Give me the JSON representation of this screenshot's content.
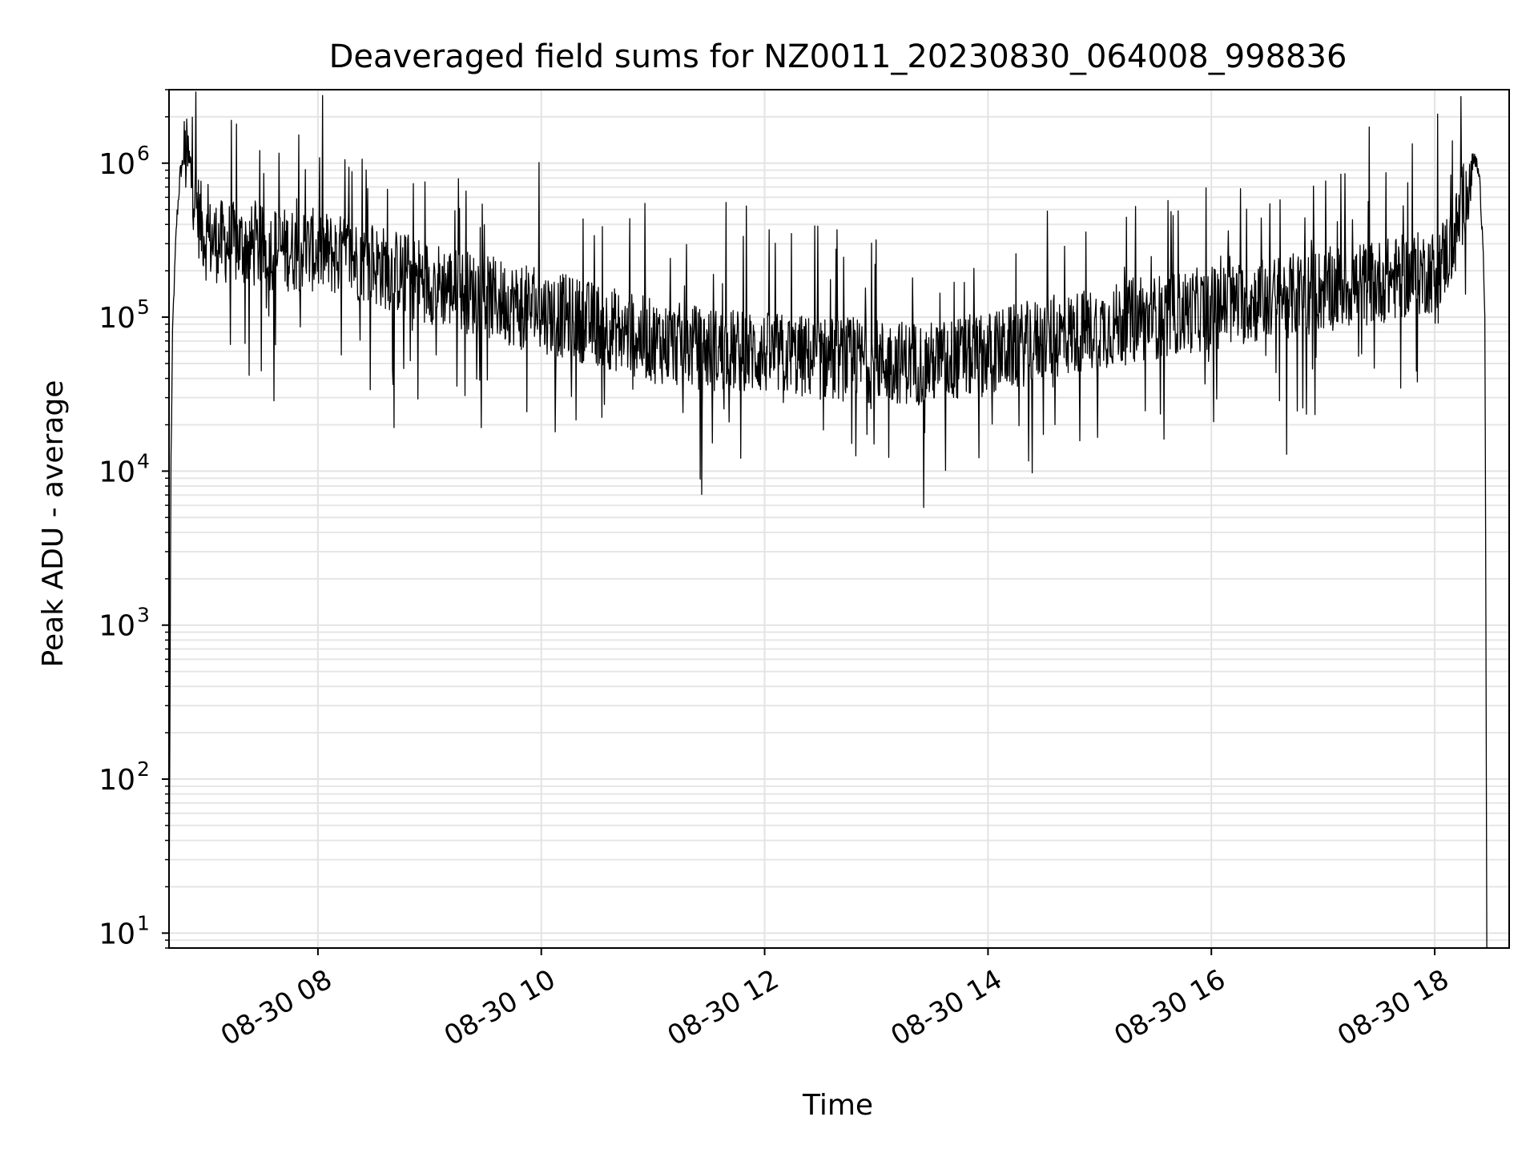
{
  "chart_data": {
    "type": "line",
    "title": "Deaveraged field sums for NZ0011_20230830_064008_998836",
    "xlabel": "Time",
    "ylabel": "Peak ADU - average",
    "xlim": [
      "2023-08-30 06:40",
      "2023-08-30 18:40"
    ],
    "ylim": [
      8,
      3000000
    ],
    "yscale": "log",
    "grid": true,
    "x_ticks": [
      {
        "t": "2023-08-30 08:00",
        "label": "08-30 08"
      },
      {
        "t": "2023-08-30 10:00",
        "label": "08-30 10"
      },
      {
        "t": "2023-08-30 12:00",
        "label": "08-30 12"
      },
      {
        "t": "2023-08-30 14:00",
        "label": "08-30 14"
      },
      {
        "t": "2023-08-30 16:00",
        "label": "08-30 16"
      },
      {
        "t": "2023-08-30 18:00",
        "label": "08-30 18"
      }
    ],
    "y_ticks": [
      {
        "value": 10,
        "base": "10",
        "exp": "1"
      },
      {
        "value": 100,
        "base": "10",
        "exp": "2"
      },
      {
        "value": 1000,
        "base": "10",
        "exp": "3"
      },
      {
        "value": 10000,
        "base": "10",
        "exp": "4"
      },
      {
        "value": 100000,
        "base": "10",
        "exp": "5"
      },
      {
        "value": 1000000,
        "base": "10",
        "exp": "6"
      }
    ],
    "series": [
      {
        "color": "#000000",
        "points": [
          [
            "2023-08-30 06:40",
            8
          ],
          [
            "2023-08-30 06:41",
            10000
          ],
          [
            "2023-08-30 06:42",
            90000
          ],
          [
            "2023-08-30 06:44",
            400000
          ],
          [
            "2023-08-30 06:46",
            850000
          ],
          [
            "2023-08-30 06:48",
            1100000
          ],
          [
            "2023-08-30 06:50",
            1050000
          ],
          [
            "2023-08-30 06:53",
            700000
          ],
          [
            "2023-08-30 06:56",
            450000
          ],
          [
            "2023-08-30 07:00",
            320000
          ],
          [
            "2023-08-30 07:30",
            280000
          ],
          [
            "2023-08-30 08:00",
            270000
          ],
          [
            "2023-08-30 08:30",
            220000
          ],
          [
            "2023-08-30 09:00",
            170000
          ],
          [
            "2023-08-30 09:30",
            135000
          ],
          [
            "2023-08-30 10:00",
            110000
          ],
          [
            "2023-08-30 10:30",
            90000
          ],
          [
            "2023-08-30 11:00",
            70000
          ],
          [
            "2023-08-30 11:30",
            62000
          ],
          [
            "2023-08-30 12:00",
            58000
          ],
          [
            "2023-08-30 12:30",
            54000
          ],
          [
            "2023-08-30 13:00",
            52000
          ],
          [
            "2023-08-30 13:30",
            50000
          ],
          [
            "2023-08-30 14:00",
            58000
          ],
          [
            "2023-08-30 14:30",
            72000
          ],
          [
            "2023-08-30 15:00",
            85000
          ],
          [
            "2023-08-30 15:30",
            100000
          ],
          [
            "2023-08-30 16:00",
            115000
          ],
          [
            "2023-08-30 16:30",
            130000
          ],
          [
            "2023-08-30 17:00",
            150000
          ],
          [
            "2023-08-30 17:30",
            170000
          ],
          [
            "2023-08-30 18:00",
            200000
          ],
          [
            "2023-08-30 18:10",
            300000
          ],
          [
            "2023-08-30 18:16",
            600000
          ],
          [
            "2023-08-30 18:20",
            1000000
          ],
          [
            "2023-08-30 18:22",
            1050000
          ],
          [
            "2023-08-30 18:24",
            800000
          ],
          [
            "2023-08-30 18:26",
            300000
          ],
          [
            "2023-08-30 18:27",
            100000
          ],
          [
            "2023-08-30 18:28",
            8
          ]
        ]
      }
    ]
  }
}
